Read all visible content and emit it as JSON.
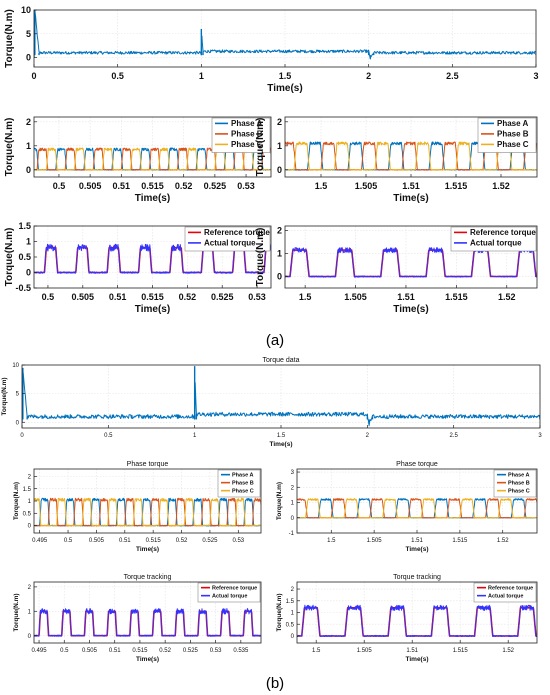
{
  "figure": {
    "label_a": "(a)",
    "label_b": "(b)"
  },
  "chart_data": [
    {
      "id": "a-top",
      "type": "line",
      "title": "",
      "xlabel": "Time(s)",
      "ylabel": "Torque(N.m)",
      "xlim": [
        0,
        3
      ],
      "ylim": [
        -2,
        10
      ],
      "xticks": [
        0,
        0.5,
        1,
        1.5,
        2,
        2.5,
        3
      ],
      "xticklabels": [
        "0",
        "0.5",
        "1",
        "1.5",
        "2",
        "2.5",
        "3"
      ],
      "yticks": [
        0,
        5,
        10
      ],
      "yticklabels": [
        "0",
        "5",
        "10"
      ],
      "grid": true,
      "legend": null,
      "series": [
        {
          "color": "#0072BD",
          "kind": "overview",
          "points": [
            [
              0,
              0
            ],
            [
              0.005,
              10
            ],
            [
              0.03,
              1
            ],
            [
              1.0,
              1
            ],
            [
              1.0,
              6
            ],
            [
              1.01,
              1.3
            ],
            [
              2.0,
              1.3
            ],
            [
              2.01,
              -0.2
            ],
            [
              2.03,
              1
            ],
            [
              3.0,
              1
            ]
          ],
          "band": 0.3
        }
      ]
    },
    {
      "id": "a-mid-left",
      "type": "line",
      "title": "",
      "xlabel": "Time(s)",
      "ylabel": "Torque(N.m)",
      "xlim": [
        0.496,
        0.534
      ],
      "ylim": [
        -0.3,
        2.2
      ],
      "xticks": [
        0.5,
        0.505,
        0.51,
        0.515,
        0.52,
        0.525,
        0.53
      ],
      "xticklabels": [
        "0.5",
        "0.505",
        "0.51",
        "0.515",
        "0.52",
        "0.525",
        "0.53"
      ],
      "yticks": [
        0,
        1,
        2
      ],
      "yticklabels": [
        "0",
        "1",
        "2"
      ],
      "grid": true,
      "legend": "top-right",
      "period": 0.0045,
      "high": 0.85,
      "low": 0,
      "series": [
        {
          "name": "Phase A",
          "color": "#0072BD",
          "phase": 0.0
        },
        {
          "name": "Phase B",
          "color": "#D95319",
          "phase": 0.0015
        },
        {
          "name": "Phase C",
          "color": "#EDB120",
          "phase": 0.003
        }
      ]
    },
    {
      "id": "a-mid-right",
      "type": "line",
      "title": "",
      "xlabel": "Time(s)",
      "ylabel": "Torque(N.m)",
      "xlim": [
        1.496,
        1.524
      ],
      "ylim": [
        -0.3,
        2.2
      ],
      "xticks": [
        1.5,
        1.505,
        1.51,
        1.515,
        1.52
      ],
      "xticklabels": [
        "1.5",
        "1.505",
        "1.51",
        "1.515",
        "1.52"
      ],
      "yticks": [
        0,
        1,
        2
      ],
      "yticklabels": [
        "0",
        "1",
        "2"
      ],
      "grid": true,
      "legend": "top-right",
      "period": 0.0045,
      "high": 1.1,
      "low": 0,
      "series": [
        {
          "name": "Phase A",
          "color": "#0072BD",
          "phase": 0.0
        },
        {
          "name": "Phase B",
          "color": "#D95319",
          "phase": 0.0015
        },
        {
          "name": "Phase C",
          "color": "#EDB120",
          "phase": 0.003
        }
      ]
    },
    {
      "id": "a-bot-left",
      "type": "line",
      "title": "",
      "xlabel": "Time(s)",
      "ylabel": "Torque(N.m)",
      "xlim": [
        0.498,
        0.532
      ],
      "ylim": [
        -0.5,
        1.5
      ],
      "xticks": [
        0.5,
        0.505,
        0.51,
        0.515,
        0.52,
        0.525,
        0.53
      ],
      "xticklabels": [
        "0.5",
        "0.505",
        "0.51",
        "0.515",
        "0.52",
        "0.525",
        "0.53"
      ],
      "yticks": [
        -0.5,
        0,
        0.5,
        1,
        1.5
      ],
      "yticklabels": [
        "-0.5",
        "0",
        "0.5",
        "1",
        "1.5"
      ],
      "grid": true,
      "legend": "top-right",
      "period": 0.0045,
      "high": 0.8,
      "low": 0,
      "series": [
        {
          "name": "Reference torque",
          "color": "#E8000B",
          "phase": 0.0,
          "kind": "ref"
        },
        {
          "name": "Actual torque",
          "color": "#3333FF",
          "phase": 0.0,
          "kind": "act"
        }
      ]
    },
    {
      "id": "a-bot-right",
      "type": "line",
      "title": "",
      "xlabel": "Time(s)",
      "ylabel": "Torque(N.m)",
      "xlim": [
        1.498,
        1.523
      ],
      "ylim": [
        -0.5,
        2.2
      ],
      "xticks": [
        1.5,
        1.505,
        1.51,
        1.515,
        1.52
      ],
      "xticklabels": [
        "1.5",
        "1.505",
        "1.51",
        "1.515",
        "1.52"
      ],
      "yticks": [
        0,
        1,
        2
      ],
      "yticklabels": [
        "0",
        "1",
        "2"
      ],
      "grid": true,
      "legend": "top-right",
      "period": 0.0045,
      "high": 1.15,
      "low": 0,
      "series": [
        {
          "name": "Reference torque",
          "color": "#E8000B",
          "phase": 0.0,
          "kind": "ref"
        },
        {
          "name": "Actual torque",
          "color": "#3333FF",
          "phase": 0.0,
          "kind": "act"
        }
      ]
    },
    {
      "id": "b-top",
      "type": "line",
      "title": "Torque data",
      "xlabel": "Time(s)",
      "ylabel": "Torque(N.m)",
      "xlim": [
        0,
        3
      ],
      "ylim": [
        -1,
        10
      ],
      "xticks": [
        0,
        0.5,
        1,
        1.5,
        2,
        2.5,
        3
      ],
      "xticklabels": [
        "0",
        "0.5",
        "1",
        "1.5",
        "2",
        "2.5",
        "3"
      ],
      "yticks": [
        0,
        5,
        10
      ],
      "yticklabels": [
        "0",
        "5",
        "10"
      ],
      "grid": true,
      "legend": null,
      "series": [
        {
          "color": "#0072BD",
          "kind": "overview",
          "points": [
            [
              0,
              0
            ],
            [
              0.005,
              9.5
            ],
            [
              0.03,
              1
            ],
            [
              1.0,
              1
            ],
            [
              1.0,
              9.8
            ],
            [
              1.01,
              1.4
            ],
            [
              2.0,
              1.4
            ],
            [
              2.01,
              -0.3
            ],
            [
              2.03,
              1
            ],
            [
              3.0,
              1
            ]
          ],
          "band": 0.35
        }
      ]
    },
    {
      "id": "b-mid-left",
      "type": "line",
      "title": "Phase torque",
      "xlabel": "Time(s)",
      "ylabel": "Torque(N.m)",
      "xlim": [
        0.494,
        0.534
      ],
      "ylim": [
        -0.3,
        2.3
      ],
      "xticks": [
        0.495,
        0.5,
        0.505,
        0.51,
        0.515,
        0.52,
        0.525,
        0.53
      ],
      "xticklabels": [
        "0.495",
        "0.5",
        "0.505",
        "0.51",
        "0.515",
        "0.52",
        "0.525",
        "0.53"
      ],
      "yticks": [
        0,
        0.5,
        1,
        1.5,
        2
      ],
      "yticklabels": [
        "0",
        "0.5",
        "1",
        "1.5",
        "2"
      ],
      "grid": true,
      "legend": "top-right",
      "period": 0.0045,
      "high": 1.05,
      "low": 0,
      "series": [
        {
          "name": "Phase A",
          "color": "#0072BD",
          "phase": 0.0
        },
        {
          "name": "Phase B",
          "color": "#D95319",
          "phase": 0.0015
        },
        {
          "name": "Phase C",
          "color": "#EDB120",
          "phase": 0.003
        }
      ]
    },
    {
      "id": "b-mid-right",
      "type": "line",
      "title": "Phase torque",
      "xlabel": "Time(s)",
      "ylabel": "Torque(N.m)",
      "xlim": [
        1.496,
        1.524
      ],
      "ylim": [
        -1,
        3.2
      ],
      "xticks": [
        1.5,
        1.505,
        1.51,
        1.515,
        1.52
      ],
      "xticklabels": [
        "1.5",
        "1.505",
        "1.51",
        "1.515",
        "1.52"
      ],
      "yticks": [
        -1,
        0,
        1,
        2,
        3
      ],
      "yticklabels": [
        "-1",
        "0",
        "1",
        "2",
        "3"
      ],
      "grid": true,
      "legend": "top-right",
      "period": 0.0045,
      "high": 1.2,
      "low": 0,
      "series": [
        {
          "name": "Phase A",
          "color": "#0072BD",
          "phase": 0.0
        },
        {
          "name": "Phase B",
          "color": "#D95319",
          "phase": 0.0015
        },
        {
          "name": "Phase C",
          "color": "#EDB120",
          "phase": 0.003
        }
      ]
    },
    {
      "id": "b-bot-left",
      "type": "line",
      "title": "Torque tracking",
      "xlabel": "Time(s)",
      "ylabel": "Torque(N.m)",
      "xlim": [
        0.494,
        0.539
      ],
      "ylim": [
        -0.3,
        2.2
      ],
      "xticks": [
        0.495,
        0.5,
        0.505,
        0.51,
        0.515,
        0.52,
        0.525,
        0.53,
        0.535
      ],
      "xticklabels": [
        "0.495",
        "0.5",
        "0.505",
        "0.51",
        "0.515",
        "0.52",
        "0.525",
        "0.53",
        "0.535"
      ],
      "yticks": [
        0,
        1,
        2
      ],
      "yticklabels": [
        "0",
        "1",
        "2"
      ],
      "grid": true,
      "legend": "top-right",
      "period": 0.0045,
      "high": 1.0,
      "low": 0,
      "series": [
        {
          "name": "Reference torque",
          "color": "#E8000B",
          "phase": 0.0,
          "kind": "ref"
        },
        {
          "name": "Actual torque",
          "color": "#3333FF",
          "phase": 0.0,
          "kind": "act"
        }
      ]
    },
    {
      "id": "b-bot-right",
      "type": "line",
      "title": "Torque tracking",
      "xlabel": "Time(s)",
      "ylabel": "Torque(N.m)",
      "xlim": [
        1.498,
        1.523
      ],
      "ylim": [
        -0.3,
        2.3
      ],
      "xticks": [
        1.5,
        1.505,
        1.51,
        1.515,
        1.52
      ],
      "xticklabels": [
        "1.5",
        "1.505",
        "1.51",
        "1.515",
        "1.52"
      ],
      "yticks": [
        0,
        0.5,
        1,
        1.5,
        2
      ],
      "yticklabels": [
        "0",
        "0.5",
        "1",
        "1.5",
        "2"
      ],
      "grid": true,
      "legend": "top-right",
      "period": 0.0045,
      "high": 1.2,
      "low": 0,
      "series": [
        {
          "name": "Reference torque",
          "color": "#E8000B",
          "phase": 0.0,
          "kind": "ref"
        },
        {
          "name": "Actual torque",
          "color": "#3333FF",
          "phase": 0.0,
          "kind": "act"
        }
      ]
    }
  ]
}
